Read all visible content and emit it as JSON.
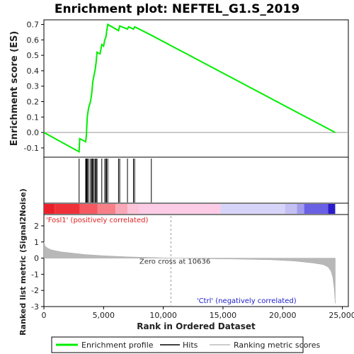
{
  "chart_data": {
    "type": "line",
    "title": "Enrichment plot: NEFTEL_G1.S_2019",
    "top_panel": {
      "ylabel": "Enrichment score (ES)",
      "ylim": [
        -0.16,
        0.73
      ],
      "yticks": [
        "-0.1",
        "0.0",
        "0.1",
        "0.2",
        "0.3",
        "0.4",
        "0.5",
        "0.6",
        "0.7"
      ],
      "series_name": "Enrichment profile",
      "color": "#00ee00",
      "points": [
        [
          0,
          0.0
        ],
        [
          2950,
          -0.125
        ],
        [
          3000,
          -0.04
        ],
        [
          3500,
          -0.06
        ],
        [
          3560,
          -0.02
        ],
        [
          3600,
          0.05
        ],
        [
          3650,
          0.11
        ],
        [
          3750,
          0.16
        ],
        [
          3900,
          0.2
        ],
        [
          4000,
          0.25
        ],
        [
          4050,
          0.29
        ],
        [
          4100,
          0.33
        ],
        [
          4200,
          0.37
        ],
        [
          4300,
          0.41
        ],
        [
          4380,
          0.46
        ],
        [
          4450,
          0.52
        ],
        [
          4700,
          0.51
        ],
        [
          4850,
          0.57
        ],
        [
          5000,
          0.56
        ],
        [
          5100,
          0.6
        ],
        [
          5200,
          0.62
        ],
        [
          5250,
          0.65
        ],
        [
          5350,
          0.7
        ],
        [
          6250,
          0.66
        ],
        [
          6350,
          0.69
        ],
        [
          7000,
          0.67
        ],
        [
          7100,
          0.685
        ],
        [
          7500,
          0.67
        ],
        [
          7600,
          0.685
        ],
        [
          9000,
          0.63
        ],
        [
          24400,
          0.0
        ]
      ]
    },
    "hits": [
      2950,
      3500,
      3560,
      3600,
      3650,
      3750,
      3900,
      4000,
      4050,
      4100,
      4200,
      4300,
      4380,
      4450,
      4850,
      5100,
      5200,
      5250,
      5350,
      6250,
      6350,
      7000,
      7500,
      7600,
      9000
    ],
    "rank_bar": {
      "segments": [
        {
          "start": 0,
          "end": 900,
          "color": "#e8202a"
        },
        {
          "start": 900,
          "end": 3000,
          "color": "#f03038"
        },
        {
          "start": 3000,
          "end": 4500,
          "color": "#f45860"
        },
        {
          "start": 4500,
          "end": 6000,
          "color": "#f78088"
        },
        {
          "start": 6000,
          "end": 7000,
          "color": "#f9a8b8"
        },
        {
          "start": 7000,
          "end": 8000,
          "color": "#fbc4d8"
        },
        {
          "start": 8000,
          "end": 14800,
          "color": "#fccbe6"
        },
        {
          "start": 14800,
          "end": 20200,
          "color": "#d6d4f8"
        },
        {
          "start": 20200,
          "end": 21200,
          "color": "#c4c0f2"
        },
        {
          "start": 21200,
          "end": 21800,
          "color": "#a29cec"
        },
        {
          "start": 21800,
          "end": 23800,
          "color": "#6a60e4"
        },
        {
          "start": 23800,
          "end": 24400,
          "color": "#2a1cc8"
        }
      ]
    },
    "bottom_panel": {
      "ylabel": "Ranked list metric (Signal2Noise)",
      "ylim": [
        -3,
        2.7
      ],
      "yticks": [
        "-3",
        "-2",
        "-1",
        "0",
        "1",
        "2"
      ],
      "profile": [
        [
          0,
          1.0
        ],
        [
          100,
          0.75
        ],
        [
          300,
          0.62
        ],
        [
          600,
          0.52
        ],
        [
          1000,
          0.45
        ],
        [
          1500,
          0.38
        ],
        [
          2500,
          0.3
        ],
        [
          3500,
          0.22
        ],
        [
          5000,
          0.15
        ],
        [
          7000,
          0.08
        ],
        [
          9000,
          0.04
        ],
        [
          10636,
          0.0
        ],
        [
          13000,
          -0.03
        ],
        [
          16000,
          -0.06
        ],
        [
          19000,
          -0.1
        ],
        [
          21000,
          -0.18
        ],
        [
          22500,
          -0.3
        ],
        [
          23400,
          -0.4
        ],
        [
          23800,
          -0.55
        ],
        [
          24050,
          -0.8
        ],
        [
          24200,
          -1.2
        ],
        [
          24320,
          -1.9
        ],
        [
          24400,
          -2.8
        ]
      ],
      "zero_cross_label": "Zero cross at 10636",
      "zero_cross": 10636,
      "pos_label": "'Fosl1' (positively correlated)",
      "neg_label": "'Ctrl' (negatively correlated)"
    },
    "xlabel": "Rank in Ordered Dataset",
    "xlim": [
      0,
      25500
    ],
    "xticks": [
      "0",
      "5,000",
      "10,000",
      "15,000",
      "20,000",
      "25,000"
    ],
    "legend": {
      "placement": "bottom",
      "items": [
        {
          "label": "Enrichment profile",
          "color": "#00ee00"
        },
        {
          "label": "Hits",
          "color": "#000000"
        },
        {
          "label": "Ranking metric scores",
          "color": "#bbbbbb"
        }
      ]
    }
  }
}
